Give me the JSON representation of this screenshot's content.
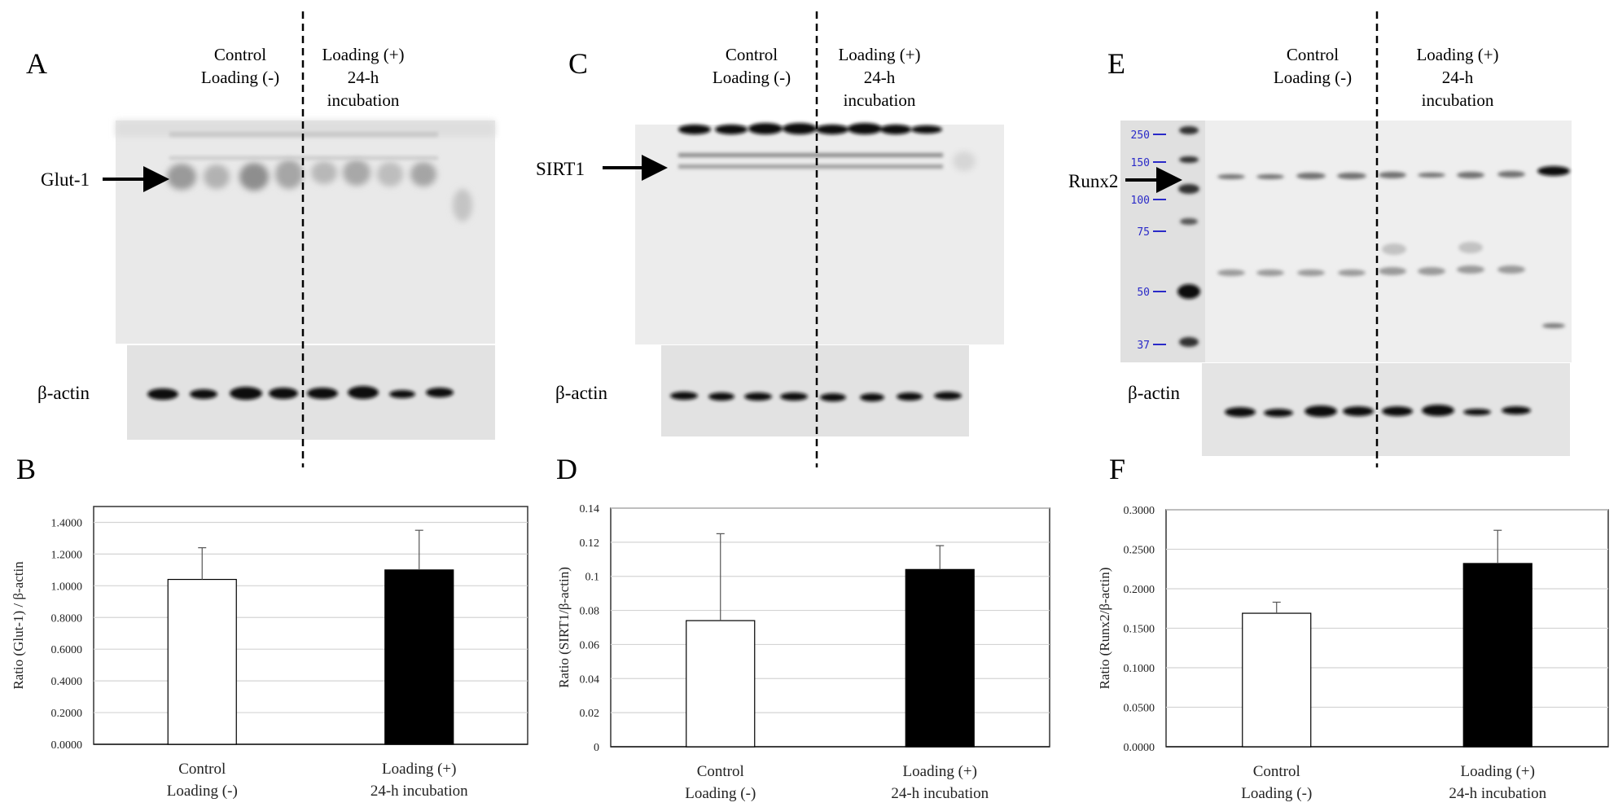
{
  "panel_letters": {
    "a": "A",
    "b": "B",
    "c": "C",
    "d": "D",
    "e": "E",
    "f": "F"
  },
  "blot_headers": {
    "control_line1": "Control",
    "control_line2": "Loading (-)",
    "loading_line1": "Loading (+)",
    "loading_line2": "24-h",
    "loading_line3": "incubation"
  },
  "blots": [
    {
      "target": "Glut-1",
      "loading_label": "β-actin"
    },
    {
      "target": "SIRT1",
      "loading_label": "β-actin"
    },
    {
      "target": "Runx2",
      "loading_label": "β-actin",
      "ladder_markers": [
        "250",
        "150",
        "100",
        "75",
        "50",
        "37"
      ]
    }
  ],
  "chart_data": [
    {
      "type": "bar",
      "panel": "B",
      "title": "",
      "xlabel": "",
      "ylabel": "Ratio (Glut-1) / β-actin",
      "categories": [
        [
          "Control",
          "Loading (-)"
        ],
        [
          "Loading (+)",
          "24-h incubation"
        ]
      ],
      "values": [
        1.04,
        1.1
      ],
      "errors": [
        0.2,
        0.25
      ],
      "bar_colors": [
        "#ffffff",
        "#000000"
      ],
      "ylim": [
        0,
        1.5
      ],
      "yticks": [
        "0.0000",
        "0.2000",
        "0.4000",
        "0.6000",
        "0.8000",
        "1.0000",
        "1.2000",
        "1.4000"
      ],
      "ytick_values": [
        0,
        0.2,
        0.4,
        0.6,
        0.8,
        1.0,
        1.2,
        1.4
      ],
      "grid": true
    },
    {
      "type": "bar",
      "panel": "D",
      "title": "",
      "xlabel": "",
      "ylabel": "Ratio (SIRT1/β-actin)",
      "categories": [
        [
          "Control",
          "Loading (-)"
        ],
        [
          "Loading (+)",
          "24-h incubation"
        ]
      ],
      "values": [
        0.074,
        0.104
      ],
      "errors": [
        0.051,
        0.014
      ],
      "bar_colors": [
        "#ffffff",
        "#000000"
      ],
      "ylim": [
        0,
        0.14
      ],
      "yticks": [
        "0",
        "0.02",
        "0.04",
        "0.06",
        "0.08",
        "0.1",
        "0.12",
        "0.14"
      ],
      "ytick_values": [
        0,
        0.02,
        0.04,
        0.06,
        0.08,
        0.1,
        0.12,
        0.14
      ],
      "grid": true
    },
    {
      "type": "bar",
      "panel": "F",
      "title": "",
      "xlabel": "",
      "ylabel": "Ratio (Runx2/β-actin)",
      "categories": [
        [
          "Control",
          "Loading (-)"
        ],
        [
          "Loading (+)",
          "24-h incubation"
        ]
      ],
      "values": [
        0.169,
        0.232
      ],
      "errors": [
        0.014,
        0.042
      ],
      "bar_colors": [
        "#ffffff",
        "#000000"
      ],
      "ylim": [
        0,
        0.3
      ],
      "yticks": [
        "0.0000",
        "0.0500",
        "0.1000",
        "0.1500",
        "0.2000",
        "0.2500",
        "0.3000"
      ],
      "ytick_values": [
        0,
        0.05,
        0.1,
        0.15,
        0.2,
        0.25,
        0.3
      ],
      "grid": true
    }
  ],
  "colors": {
    "ladder_blue": "#2a2ac8",
    "grid": "#d4d4d4",
    "axis": "#222222"
  }
}
